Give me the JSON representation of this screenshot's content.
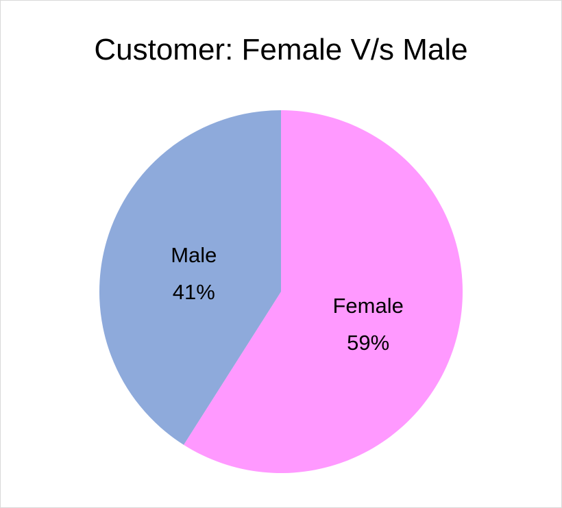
{
  "chart_data": {
    "type": "pie",
    "title": "Customer: Female V/s Male",
    "slices": [
      {
        "label": "Female",
        "value": 59,
        "pct_label": "59%",
        "color": "#FF99FF"
      },
      {
        "label": "Male",
        "value": 41,
        "pct_label": "41%",
        "color": "#8EAADB"
      }
    ],
    "start_angle_deg": 0,
    "direction": "clockwise",
    "data_labels": "inside"
  }
}
